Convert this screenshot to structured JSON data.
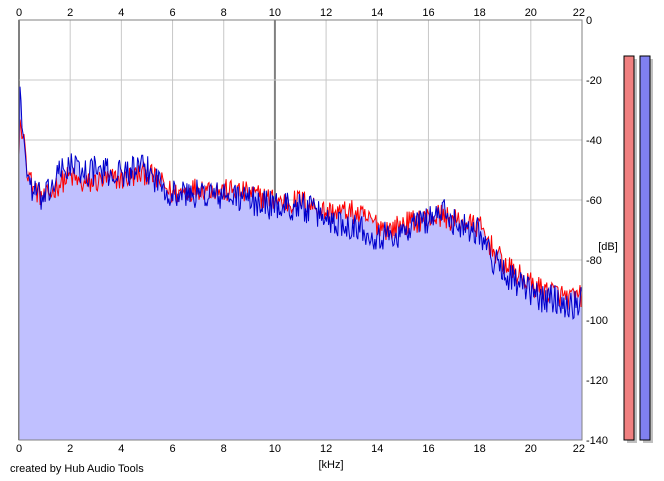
{
  "credit": "created by Hub Audio Tools",
  "colors": {
    "background": "#ffffff",
    "grid": "#c8c8c8",
    "grid_major": "#808080",
    "fill": "#c0c0ff",
    "channel_left": "#ff0000",
    "channel_right": "#0000cc",
    "meter_left": "#f08080",
    "meter_right": "#8080f0"
  },
  "chart_data": {
    "type": "line",
    "title": "",
    "xlabel": "[kHz]",
    "ylabel": "[dB]",
    "xlim": [
      0,
      22
    ],
    "ylim": [
      -140,
      0
    ],
    "x_ticks": [
      "0",
      "2",
      "4",
      "6",
      "8",
      "10",
      "12",
      "14",
      "16",
      "18",
      "20",
      "22"
    ],
    "x_tick_values": [
      0,
      2,
      4,
      6,
      8,
      10,
      12,
      14,
      16,
      18,
      20,
      22
    ],
    "y_ticks": [
      "0",
      "-20",
      "-40",
      "-60",
      "-80",
      "-100",
      "-120",
      "-140"
    ],
    "y_tick_values": [
      0,
      -20,
      -40,
      -60,
      -80,
      -100,
      -120,
      -140
    ],
    "grid": true,
    "filled_area_under": true,
    "series": [
      {
        "channel": "left",
        "color": "#ff0000",
        "x": [
          0,
          0.05,
          0.1,
          0.2,
          0.3,
          0.5,
          0.8,
          1.0,
          1.5,
          2.0,
          2.5,
          3.0,
          3.5,
          4.0,
          4.5,
          5.0,
          5.5,
          6.0,
          6.5,
          7.0,
          7.5,
          8.0,
          8.5,
          9.0,
          9.5,
          10.0,
          10.5,
          11.0,
          11.5,
          12.0,
          12.5,
          13.0,
          13.5,
          14.0,
          14.5,
          15.0,
          15.5,
          16.0,
          16.5,
          17.0,
          17.5,
          18.0,
          18.5,
          19.0,
          19.5,
          20.0,
          20.5,
          21.0,
          21.5,
          22.0
        ],
        "values": [
          -45,
          -30,
          -40,
          -38,
          -48,
          -55,
          -58,
          -60,
          -55,
          -52,
          -55,
          -54,
          -53,
          -53,
          -52,
          -51,
          -54,
          -58,
          -57,
          -56,
          -56,
          -57,
          -57,
          -58,
          -59,
          -60,
          -61,
          -60,
          -62,
          -64,
          -64,
          -64,
          -66,
          -68,
          -70,
          -68,
          -67,
          -66,
          -65,
          -67,
          -68,
          -69,
          -76,
          -82,
          -85,
          -88,
          -90,
          -91,
          -93,
          -92
        ],
        "amplitude": 4
      },
      {
        "channel": "right",
        "color": "#0000cc",
        "x": [
          0,
          0.05,
          0.1,
          0.2,
          0.3,
          0.5,
          0.8,
          1.0,
          1.5,
          2.0,
          2.5,
          3.0,
          3.5,
          4.0,
          4.5,
          5.0,
          5.5,
          6.0,
          6.5,
          7.0,
          7.5,
          8.0,
          8.5,
          9.0,
          9.5,
          10.0,
          10.5,
          11.0,
          11.5,
          12.0,
          12.5,
          13.0,
          13.5,
          14.0,
          14.5,
          15.0,
          15.5,
          16.0,
          16.5,
          17.0,
          17.5,
          18.0,
          18.5,
          19.0,
          19.5,
          20.0,
          20.5,
          21.0,
          21.5,
          22.0
        ],
        "values": [
          -45,
          -16,
          -35,
          -40,
          -50,
          -56,
          -59,
          -60,
          -52,
          -48,
          -51,
          -50,
          -51,
          -51,
          -50,
          -50,
          -54,
          -58,
          -58,
          -58,
          -58,
          -59,
          -59,
          -60,
          -61,
          -62,
          -62,
          -62,
          -64,
          -66,
          -68,
          -68,
          -70,
          -72,
          -72,
          -71,
          -68,
          -66,
          -64,
          -67,
          -69,
          -70,
          -80,
          -84,
          -88,
          -91,
          -93,
          -93,
          -95,
          -94
        ],
        "amplitude": 5
      }
    ],
    "level_meters": [
      {
        "channel": "left",
        "color": "#f08080",
        "level": 1.0
      },
      {
        "channel": "right",
        "color": "#8080f0",
        "level": 1.0
      }
    ]
  }
}
